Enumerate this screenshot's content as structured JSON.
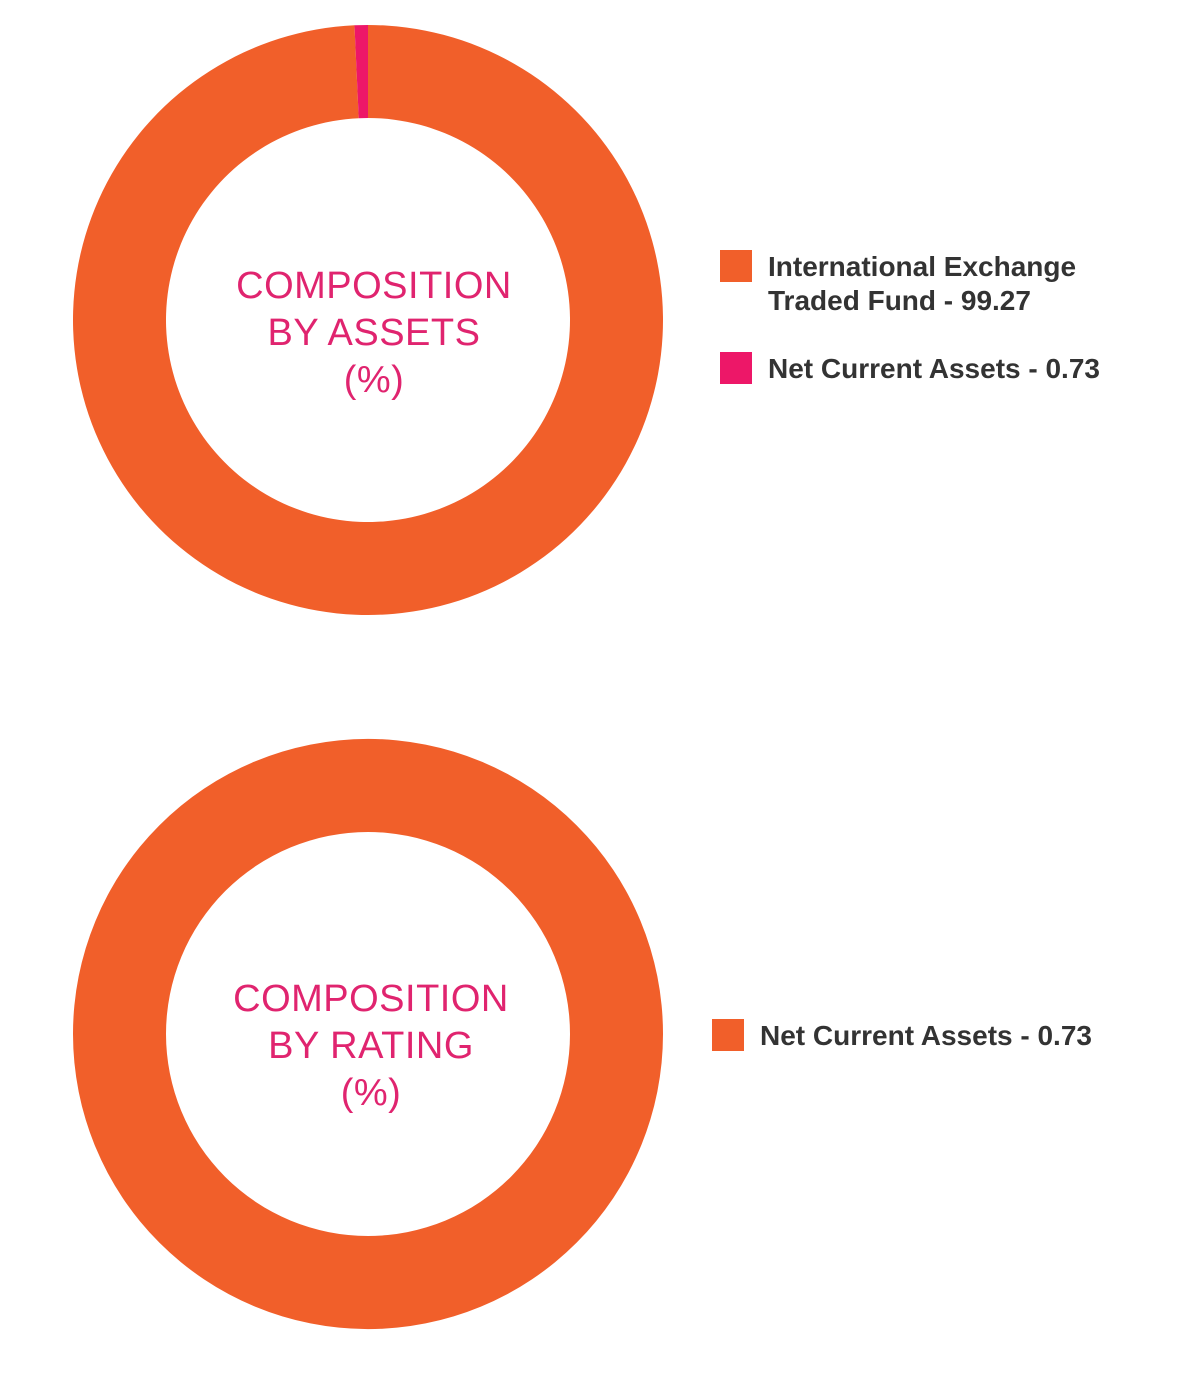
{
  "chart_data": [
    {
      "type": "pie",
      "title_lines": [
        "COMPOSITION",
        "BY ASSETS",
        "(%)"
      ],
      "slices": [
        {
          "label": "International Exchange Traded Fund - 99.27",
          "value": 99.27,
          "color": "#f15f2a"
        },
        {
          "label": "Net Current Assets - 0.73",
          "value": 0.73,
          "color": "#ed1768"
        }
      ]
    },
    {
      "type": "pie",
      "title_lines": [
        "COMPOSITION",
        "BY RATING",
        "(%)"
      ],
      "slices": [
        {
          "label": "Net Current Assets - 0.73",
          "value": 0.73,
          "color": "#f15f2a"
        }
      ]
    }
  ]
}
